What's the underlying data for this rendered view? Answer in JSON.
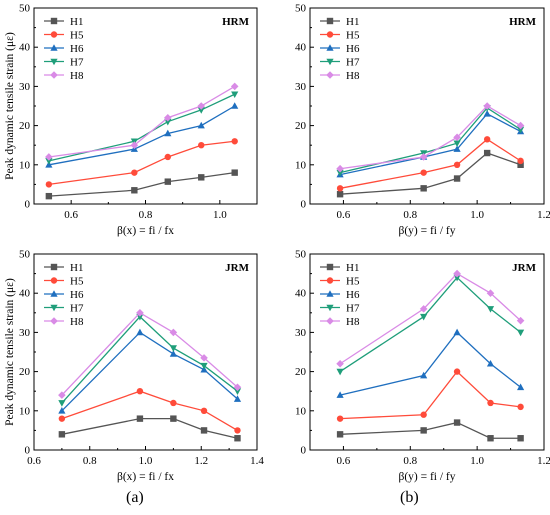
{
  "captions": {
    "a": "(a)",
    "b": "(b)"
  },
  "series_styles": {
    "H1": {
      "color": "#555555",
      "marker": "square"
    },
    "H5": {
      "color": "#ff4b3a",
      "marker": "circle"
    },
    "H6": {
      "color": "#1f6fbf",
      "marker": "triangle-up"
    },
    "H7": {
      "color": "#1f9e7a",
      "marker": "triangle-down"
    },
    "H8": {
      "color": "#d98be6",
      "marker": "diamond"
    }
  },
  "chart_data": [
    {
      "type": "line",
      "panel": "top-left",
      "title": "HRM",
      "xlabel": "β(x) = fi / fx",
      "ylabel": "Peak dynamic tensile strain (με)",
      "xlim": [
        0.5,
        1.1
      ],
      "ylim": [
        0,
        50
      ],
      "xticks": [
        0.6,
        0.8,
        1.0
      ],
      "xtick_labels": [
        "0.6",
        "0.8",
        "1.0"
      ],
      "yticks": [
        0,
        10,
        20,
        30,
        40,
        50
      ],
      "legend": "top-left",
      "x": [
        0.54,
        0.77,
        0.86,
        0.95,
        1.04
      ],
      "series": [
        {
          "name": "H1",
          "values": [
            2.0,
            3.5,
            5.7,
            6.8,
            8.0
          ]
        },
        {
          "name": "H5",
          "values": [
            5.0,
            8.0,
            12.0,
            15.0,
            16.0
          ]
        },
        {
          "name": "H6",
          "values": [
            10.0,
            14.0,
            18.0,
            20.0,
            25.0
          ]
        },
        {
          "name": "H7",
          "values": [
            11.0,
            16.0,
            21.0,
            24.0,
            28.0
          ]
        },
        {
          "name": "H8",
          "values": [
            12.0,
            15.0,
            22.0,
            25.0,
            30.0
          ]
        }
      ]
    },
    {
      "type": "line",
      "panel": "top-right",
      "title": "HRM",
      "xlabel": "β(y) = fi / fy",
      "ylabel": "",
      "xlim": [
        0.5,
        1.2
      ],
      "ylim": [
        0,
        50
      ],
      "xticks": [
        0.6,
        0.8,
        1.0,
        1.2
      ],
      "xtick_labels": [
        "0.6",
        "0.8",
        "1.0",
        "1.2"
      ],
      "yticks": [
        0,
        10,
        20,
        30,
        40,
        50
      ],
      "legend": "top-left",
      "x": [
        0.59,
        0.84,
        0.94,
        1.03,
        1.13
      ],
      "series": [
        {
          "name": "H1",
          "values": [
            2.5,
            4.0,
            6.5,
            13.0,
            10.0
          ]
        },
        {
          "name": "H5",
          "values": [
            4.0,
            8.0,
            10.0,
            16.5,
            11.0
          ]
        },
        {
          "name": "H6",
          "values": [
            7.5,
            12.0,
            14.0,
            23.0,
            18.5
          ]
        },
        {
          "name": "H7",
          "values": [
            8.0,
            13.0,
            15.5,
            24.5,
            19.0
          ]
        },
        {
          "name": "H8",
          "values": [
            9.0,
            12.0,
            17.0,
            25.0,
            20.0
          ]
        }
      ]
    },
    {
      "type": "line",
      "panel": "bottom-left",
      "title": "JRM",
      "xlabel": "β(x) = fi / fx",
      "ylabel": "Peak dynamic tensile strain (με)",
      "xlim": [
        0.6,
        1.4
      ],
      "ylim": [
        0,
        50
      ],
      "xticks": [
        0.6,
        0.8,
        1.0,
        1.2,
        1.4
      ],
      "xtick_labels": [
        "0.6",
        "0.8",
        "1.0",
        "1.2",
        "1.4"
      ],
      "yticks": [
        0,
        10,
        20,
        30,
        40,
        50
      ],
      "legend": "top-left",
      "x": [
        0.7,
        0.98,
        1.1,
        1.21,
        1.33
      ],
      "series": [
        {
          "name": "H1",
          "values": [
            4.0,
            8.0,
            8.0,
            5.0,
            3.0
          ]
        },
        {
          "name": "H5",
          "values": [
            8.0,
            15.0,
            12.0,
            10.0,
            5.0
          ]
        },
        {
          "name": "H6",
          "values": [
            10.0,
            30.0,
            24.5,
            20.5,
            13.0
          ]
        },
        {
          "name": "H7",
          "values": [
            12.0,
            34.0,
            26.0,
            21.5,
            15.0
          ]
        },
        {
          "name": "H8",
          "values": [
            14.0,
            35.0,
            30.0,
            23.5,
            16.0
          ]
        }
      ]
    },
    {
      "type": "line",
      "panel": "bottom-right",
      "title": "JRM",
      "xlabel": "β(y) = fi / fy",
      "ylabel": "",
      "xlim": [
        0.5,
        1.2
      ],
      "ylim": [
        0,
        50
      ],
      "xticks": [
        0.6,
        0.8,
        1.0,
        1.2
      ],
      "xtick_labels": [
        "0.6",
        "0.8",
        "1.0",
        "1.2"
      ],
      "yticks": [
        0,
        10,
        20,
        30,
        40,
        50
      ],
      "legend": "top-left",
      "x": [
        0.59,
        0.84,
        0.94,
        1.04,
        1.13
      ],
      "series": [
        {
          "name": "H1",
          "values": [
            4.0,
            5.0,
            7.0,
            3.0,
            3.0
          ]
        },
        {
          "name": "H5",
          "values": [
            8.0,
            9.0,
            20.0,
            12.0,
            11.0
          ]
        },
        {
          "name": "H6",
          "values": [
            14.0,
            19.0,
            30.0,
            22.0,
            16.0
          ]
        },
        {
          "name": "H7",
          "values": [
            20.0,
            34.0,
            44.0,
            36.0,
            30.0
          ]
        },
        {
          "name": "H8",
          "values": [
            22.0,
            36.0,
            45.0,
            40.0,
            33.0
          ]
        }
      ]
    }
  ]
}
